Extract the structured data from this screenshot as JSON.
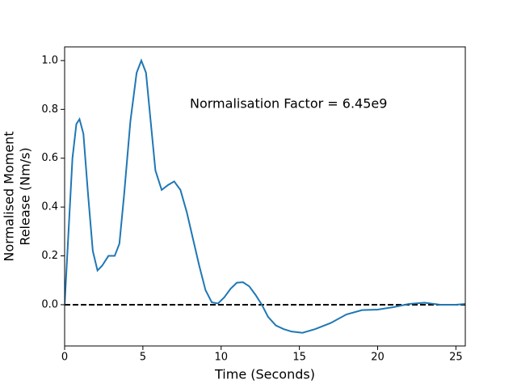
{
  "chart_data": {
    "type": "line",
    "xlabel": "Time (Seconds)",
    "ylabel": [
      "Normalised Moment",
      "Release (Nm/s)"
    ],
    "annotation": "Normalisation Factor = 6.45e9",
    "x": [
      0,
      0.25,
      0.5,
      0.75,
      0.95,
      1.2,
      1.5,
      1.8,
      2.1,
      2.4,
      2.8,
      3.2,
      3.5,
      3.8,
      4.2,
      4.6,
      4.9,
      5.2,
      5.5,
      5.8,
      6.2,
      6.6,
      7.0,
      7.4,
      7.8,
      8.2,
      8.6,
      9.0,
      9.4,
      9.8,
      10.2,
      10.6,
      11.0,
      11.4,
      11.8,
      12.2,
      12.6,
      13.0,
      13.5,
      14.0,
      14.5,
      15.2,
      16.0,
      17.0,
      18.0,
      19.0,
      20.0,
      21.0,
      22.0,
      23.0,
      24.0,
      25.0,
      25.6
    ],
    "series": [
      {
        "color": "#1f77b4",
        "values": [
          0.0,
          0.3,
          0.6,
          0.74,
          0.76,
          0.7,
          0.45,
          0.22,
          0.14,
          0.16,
          0.2,
          0.2,
          0.25,
          0.45,
          0.75,
          0.95,
          1.0,
          0.95,
          0.75,
          0.55,
          0.47,
          0.49,
          0.505,
          0.47,
          0.38,
          0.27,
          0.16,
          0.06,
          0.01,
          0.005,
          0.03,
          0.065,
          0.09,
          0.092,
          0.075,
          0.04,
          0.0,
          -0.05,
          -0.085,
          -0.1,
          -0.11,
          -0.115,
          -0.1,
          -0.075,
          -0.04,
          -0.022,
          -0.02,
          -0.01,
          0.003,
          0.008,
          0.0,
          0.0,
          0.003
        ]
      }
    ],
    "hline": 0,
    "xlim": [
      0,
      25.6
    ],
    "ylim": [
      -0.169,
      1.056
    ],
    "xticks": [
      0,
      5,
      10,
      15,
      20,
      25
    ],
    "yticks": [
      {
        "value": 0,
        "label": "0.0"
      },
      0.2,
      0.4,
      0.6,
      0.8,
      {
        "value": 1,
        "label": "1.0"
      }
    ],
    "grid": false
  }
}
